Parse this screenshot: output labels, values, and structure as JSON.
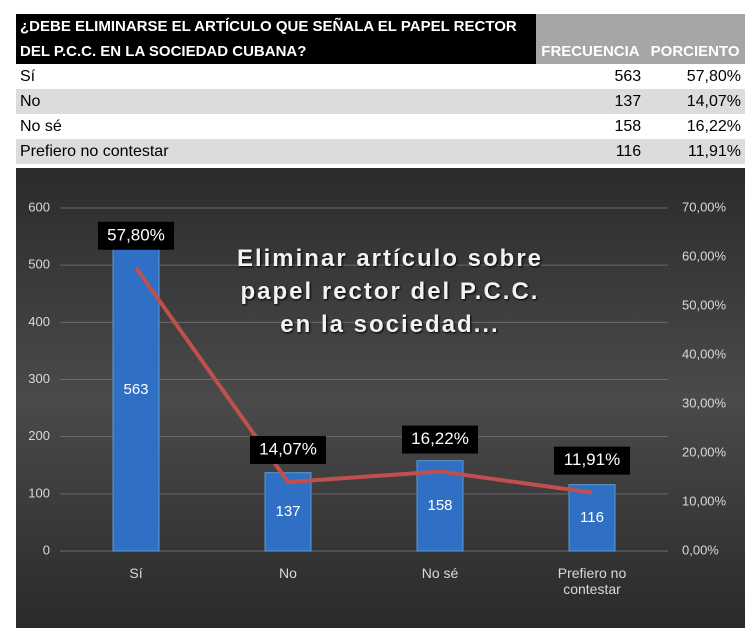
{
  "table": {
    "title_lines": [
      "¿DEBE ELIMINARSE EL ARTÍCULO QUE SEÑALA EL PAPEL RECTOR",
      "DEL P.C.C. EN LA SOCIEDAD CUBANA?"
    ],
    "columns": [
      "FRECUENCIA",
      "PORCIENTO"
    ],
    "rows": [
      [
        "Sí",
        "563",
        "57,80%"
      ],
      [
        "No",
        "137",
        "14,07%"
      ],
      [
        "No sé",
        "158",
        "16,22%"
      ],
      [
        "Prefiero no contestar",
        "116",
        "11,91%"
      ]
    ]
  },
  "chart_data": {
    "type": "bar",
    "title": "Eliminar artículo sobre papel rector del P.C.C. en la sociedad...",
    "categories": [
      "Sí",
      "No",
      "No sé",
      "Prefiero no contestar"
    ],
    "series": [
      {
        "type": "bar",
        "color": "#2f6fc4",
        "values": [
          563,
          137,
          158,
          116
        ]
      },
      {
        "type": "line",
        "axis": "y2",
        "color": "#c0504d",
        "values": [
          57.8,
          14.07,
          16.22,
          11.91
        ],
        "value_labels": [
          "57,80%",
          "14,07%",
          "16,22%",
          "11,91%"
        ]
      }
    ],
    "ylim": [
      0,
      600
    ],
    "yticks": [
      0,
      100,
      200,
      300,
      400,
      500,
      600
    ],
    "y2lim": [
      0,
      70
    ],
    "y2ticks": [
      {
        "value": 0,
        "label": "0,00%"
      },
      {
        "value": 10,
        "label": "10,00%"
      },
      {
        "value": 20,
        "label": "20,00%"
      },
      {
        "value": 30,
        "label": "30,00%"
      },
      {
        "value": 40,
        "label": "40,00%"
      },
      {
        "value": 50,
        "label": "50,00%"
      },
      {
        "value": 60,
        "label": "60,00%"
      },
      {
        "value": 70,
        "label": "70,00%"
      }
    ],
    "grid": true
  }
}
